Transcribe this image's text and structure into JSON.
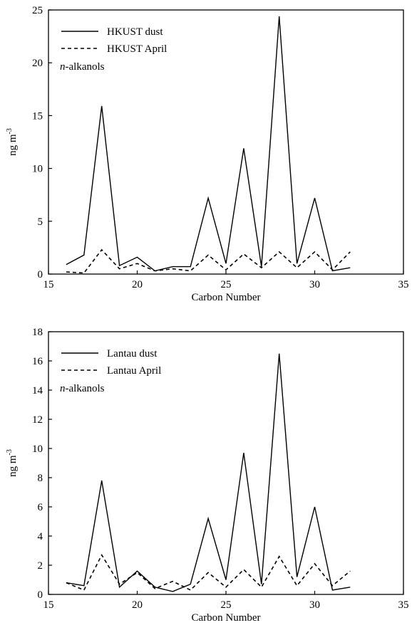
{
  "chart_data": [
    {
      "type": "line",
      "xlabel": "Carbon Number",
      "ylabel": "ng m",
      "ylabel_superscript": "-3",
      "xlim": [
        15,
        35
      ],
      "ylim": [
        0,
        25
      ],
      "xticks": [
        "15",
        "20",
        "25",
        "30",
        "35"
      ],
      "yticks": [
        "0",
        "5",
        "10",
        "15",
        "20",
        "25"
      ],
      "x": [
        16,
        17,
        18,
        19,
        20,
        21,
        22,
        23,
        24,
        25,
        26,
        27,
        28,
        29,
        30,
        31,
        32
      ],
      "series": [
        {
          "name": "HKUST dust",
          "style": "solid",
          "values": [
            0.9,
            1.8,
            15.9,
            0.8,
            1.6,
            0.3,
            0.7,
            0.7,
            7.2,
            1.0,
            11.9,
            0.7,
            24.4,
            1.0,
            7.2,
            0.3,
            0.6
          ]
        },
        {
          "name": "HKUST April",
          "style": "dashed",
          "values": [
            0.2,
            0.1,
            2.3,
            0.5,
            1.0,
            0.3,
            0.5,
            0.3,
            1.8,
            0.4,
            1.9,
            0.6,
            2.1,
            0.6,
            2.1,
            0.4,
            2.1
          ]
        }
      ],
      "annotation": {
        "italic": "n",
        "rest": "-alkanols"
      },
      "legend_position": "top-left",
      "grid": false
    },
    {
      "type": "line",
      "xlabel": "Carbon Number",
      "ylabel": "ng m",
      "ylabel_superscript": "-3",
      "xlim": [
        15,
        35
      ],
      "ylim": [
        0,
        18
      ],
      "xticks": [
        "15",
        "20",
        "25",
        "30",
        "35"
      ],
      "yticks": [
        "0",
        "2",
        "4",
        "6",
        "8",
        "10",
        "12",
        "14",
        "16",
        "18"
      ],
      "x": [
        16,
        17,
        18,
        19,
        20,
        21,
        22,
        23,
        24,
        25,
        26,
        27,
        28,
        29,
        30,
        31,
        32
      ],
      "series": [
        {
          "name": "Lantau dust",
          "style": "solid",
          "values": [
            0.8,
            0.6,
            7.8,
            0.5,
            1.6,
            0.5,
            0.2,
            0.7,
            5.2,
            1.0,
            9.7,
            0.7,
            16.5,
            1.2,
            6.0,
            0.3,
            0.5
          ]
        },
        {
          "name": "Lantau April",
          "style": "dashed",
          "values": [
            0.8,
            0.3,
            2.7,
            0.7,
            1.5,
            0.4,
            0.9,
            0.3,
            1.5,
            0.5,
            1.7,
            0.5,
            2.6,
            0.6,
            2.1,
            0.6,
            1.6
          ]
        }
      ],
      "annotation": {
        "italic": "n",
        "rest": "-alkanols"
      },
      "legend_position": "top-left",
      "grid": false
    }
  ]
}
